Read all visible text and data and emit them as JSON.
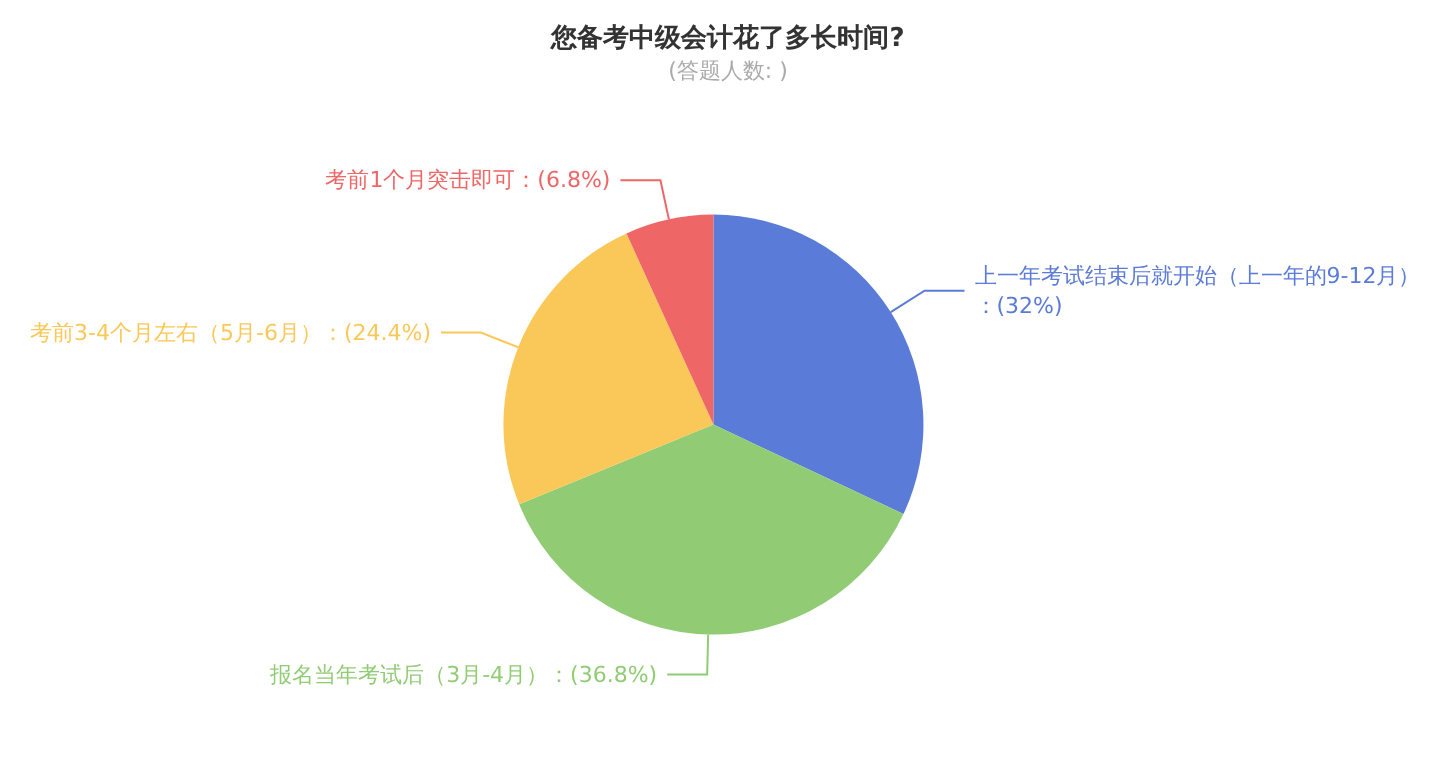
{
  "chart_data": {
    "type": "pie",
    "title": "您备考中级会计花了多长时间?",
    "subtitle": "(答题人数: )",
    "categories": [
      "上一年考试结束后就开始（上一年的9-12月）",
      "报名当年考试后（3月-4月）",
      "考前3-4个月左右（5月-6月）",
      "考前1个月突击即可"
    ],
    "values": [
      32,
      36.8,
      24.4,
      6.8
    ],
    "colors": [
      "#5b7bd8",
      "#91cc75",
      "#fac858",
      "#ee6666"
    ],
    "value_labels": [
      "：(32%)",
      "：(36.8%)",
      "：(24.4%)",
      "：(6.8%)"
    ],
    "legend": false
  }
}
